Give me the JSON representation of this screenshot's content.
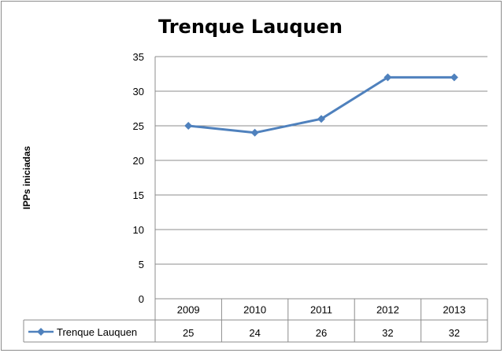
{
  "chart_data": {
    "type": "line",
    "title": "Trenque Lauquen",
    "ylabel": "IPPs iniciadas",
    "xlabel": "",
    "categories": [
      "2009",
      "2010",
      "2011",
      "2012",
      "2013"
    ],
    "y_ticks": [
      "0",
      "5",
      "10",
      "15",
      "20",
      "25",
      "30",
      "35"
    ],
    "ylim": [
      0,
      35
    ],
    "grid": true,
    "legend": "data-table-left",
    "series": [
      {
        "name": "Trenque Lauquen",
        "values": [
          25,
          24,
          26,
          32,
          32
        ],
        "value_labels": [
          "25",
          "24",
          "26",
          "32",
          "32"
        ],
        "color": "#4f81bd"
      }
    ]
  }
}
